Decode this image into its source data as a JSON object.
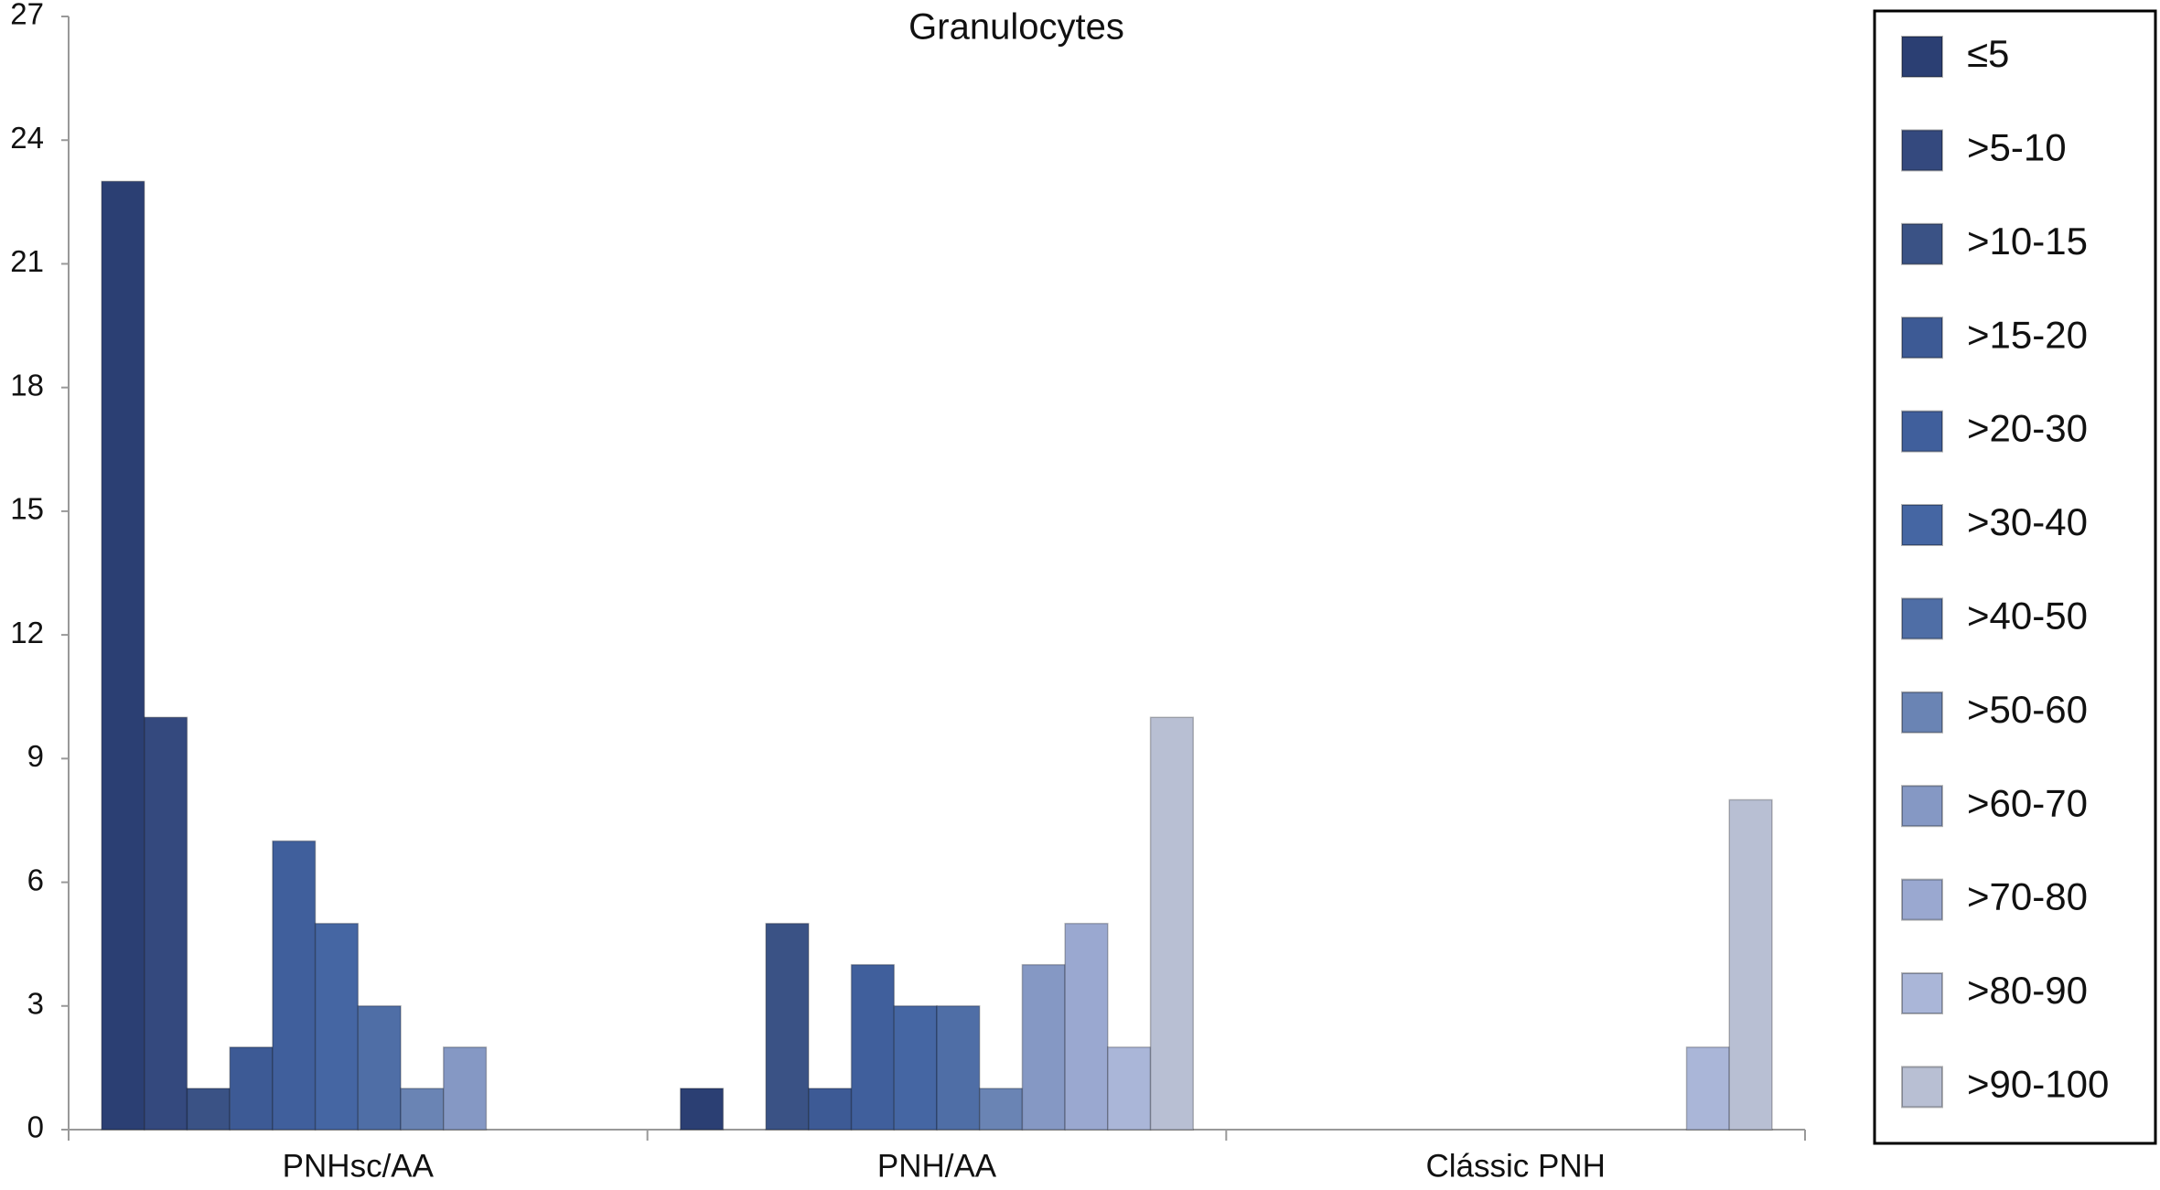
{
  "chart_data": {
    "type": "bar",
    "title": "Granulocytes",
    "categories": [
      "PNHsc/AA",
      "PNH/AA",
      "Clássic PNH"
    ],
    "series": [
      {
        "name": "≤5",
        "color": "#2b3f73",
        "values": [
          23,
          1,
          0
        ]
      },
      {
        "name": ">5-10",
        "color": "#34497e",
        "values": [
          10,
          0,
          0
        ]
      },
      {
        "name": ">10-15",
        "color": "#3a5285",
        "values": [
          1,
          5,
          0
        ]
      },
      {
        "name": ">15-20",
        "color": "#3d5a95",
        "values": [
          2,
          1,
          0
        ]
      },
      {
        "name": ">20-30",
        "color": "#405f9c",
        "values": [
          7,
          4,
          0
        ]
      },
      {
        "name": ">30-40",
        "color": "#4566a3",
        "values": [
          5,
          3,
          0
        ]
      },
      {
        "name": ">40-50",
        "color": "#4f6ea6",
        "values": [
          3,
          3,
          0
        ]
      },
      {
        "name": ">50-60",
        "color": "#6a84b4",
        "values": [
          1,
          1,
          0
        ]
      },
      {
        "name": ">60-70",
        "color": "#8598c4",
        "values": [
          2,
          4,
          0
        ]
      },
      {
        "name": ">70-80",
        "color": "#9aa8d0",
        "values": [
          0,
          5,
          0
        ]
      },
      {
        "name": ">80-90",
        "color": "#aab6d8",
        "values": [
          0,
          2,
          2
        ]
      },
      {
        "name": ">90-100",
        "color": "#b8bfd3",
        "values": [
          0,
          10,
          8
        ]
      }
    ],
    "ylim": [
      0,
      27
    ],
    "yticks": [
      0,
      3,
      6,
      9,
      12,
      15,
      18,
      21,
      24,
      27
    ],
    "grid": false
  }
}
